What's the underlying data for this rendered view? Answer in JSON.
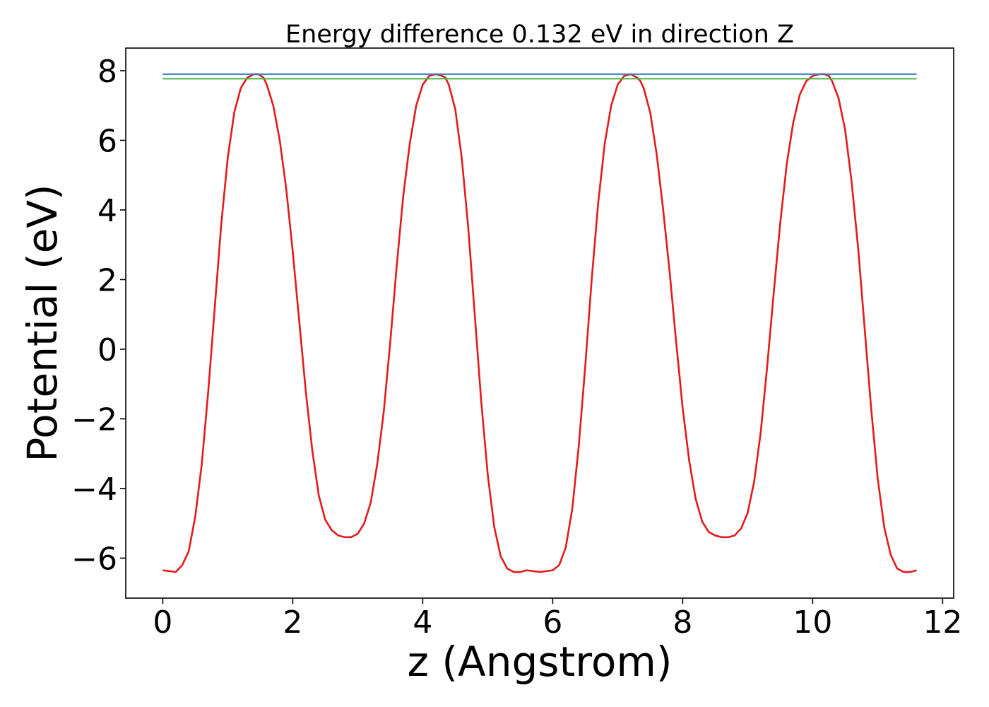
{
  "chart_data": {
    "type": "line",
    "title": "Energy difference 0.132 eV in direction Z",
    "xlabel": "z (Angstrom)",
    "ylabel": "Potential (eV)",
    "xlim": [
      -0.57,
      12.17
    ],
    "ylim": [
      -7.15,
      8.65
    ],
    "xticks": [
      "0",
      "2",
      "4",
      "6",
      "8",
      "10",
      "12"
    ],
    "yticks": [
      "−6",
      "−4",
      "−2",
      "0",
      "2",
      "4",
      "6",
      "8"
    ],
    "grid": false,
    "legend": "none",
    "series": [
      {
        "color": "#e41a1c",
        "x": [
          0.0,
          0.2,
          0.3,
          0.4,
          0.5,
          0.6,
          0.7,
          0.8,
          0.9,
          1.0,
          1.1,
          1.2,
          1.3,
          1.4,
          1.47,
          1.55,
          1.6,
          1.7,
          1.8,
          1.9,
          2.0,
          2.1,
          2.2,
          2.3,
          2.4,
          2.5,
          2.6,
          2.7,
          2.8,
          2.9,
          3.0,
          3.1,
          3.2,
          3.3,
          3.4,
          3.5,
          3.6,
          3.7,
          3.8,
          3.9,
          4.0,
          4.1,
          4.2,
          4.3,
          4.35,
          4.4,
          4.5,
          4.6,
          4.7,
          4.8,
          4.9,
          5.0,
          5.1,
          5.2,
          5.3,
          5.4,
          5.5,
          5.6,
          5.8,
          6.0,
          6.1,
          6.2,
          6.3,
          6.4,
          6.5,
          6.6,
          6.7,
          6.8,
          6.9,
          7.0,
          7.1,
          7.2,
          7.3,
          7.35,
          7.4,
          7.5,
          7.6,
          7.7,
          7.8,
          7.9,
          8.0,
          8.1,
          8.2,
          8.3,
          8.4,
          8.5,
          8.6,
          8.7,
          8.8,
          8.9,
          9.0,
          9.1,
          9.2,
          9.3,
          9.4,
          9.5,
          9.6,
          9.7,
          9.8,
          9.9,
          10.0,
          10.1,
          10.18,
          10.25,
          10.3,
          10.4,
          10.5,
          10.6,
          10.7,
          10.8,
          10.9,
          11.0,
          11.1,
          11.2,
          11.3,
          11.4,
          11.5,
          11.6
        ],
        "y": [
          -6.35,
          -6.4,
          -6.2,
          -5.8,
          -4.8,
          -3.3,
          -1.2,
          1.2,
          3.6,
          5.5,
          6.8,
          7.5,
          7.8,
          7.9,
          7.9,
          7.8,
          7.6,
          7.0,
          6.0,
          4.6,
          2.8,
          0.8,
          -1.2,
          -2.9,
          -4.2,
          -4.9,
          -5.2,
          -5.35,
          -5.4,
          -5.4,
          -5.3,
          -5.0,
          -4.4,
          -3.3,
          -1.8,
          0.2,
          2.4,
          4.4,
          5.9,
          7.0,
          7.6,
          7.85,
          7.9,
          7.85,
          7.8,
          7.6,
          6.9,
          5.5,
          3.5,
          1.0,
          -1.5,
          -3.6,
          -5.1,
          -5.95,
          -6.3,
          -6.4,
          -6.4,
          -6.35,
          -6.4,
          -6.35,
          -6.2,
          -5.7,
          -4.6,
          -2.8,
          -0.5,
          2.0,
          4.2,
          5.9,
          7.0,
          7.6,
          7.85,
          7.9,
          7.8,
          7.7,
          7.5,
          6.8,
          5.6,
          4.0,
          2.2,
          0.2,
          -1.7,
          -3.2,
          -4.3,
          -4.95,
          -5.25,
          -5.35,
          -5.4,
          -5.4,
          -5.35,
          -5.15,
          -4.7,
          -3.8,
          -2.4,
          -0.5,
          1.6,
          3.6,
          5.3,
          6.5,
          7.3,
          7.7,
          7.85,
          7.9,
          7.9,
          7.85,
          7.7,
          7.2,
          6.3,
          4.8,
          2.9,
          0.6,
          -1.7,
          -3.7,
          -5.1,
          -5.9,
          -6.3,
          -6.4,
          -6.4,
          -6.35
        ]
      },
      {
        "color": "#377eb8",
        "x": [
          0.0,
          11.6
        ],
        "y": [
          7.9,
          7.9
        ]
      },
      {
        "color": "#4daf4a",
        "x": [
          0.0,
          11.6
        ],
        "y": [
          7.77,
          7.77
        ]
      }
    ]
  }
}
